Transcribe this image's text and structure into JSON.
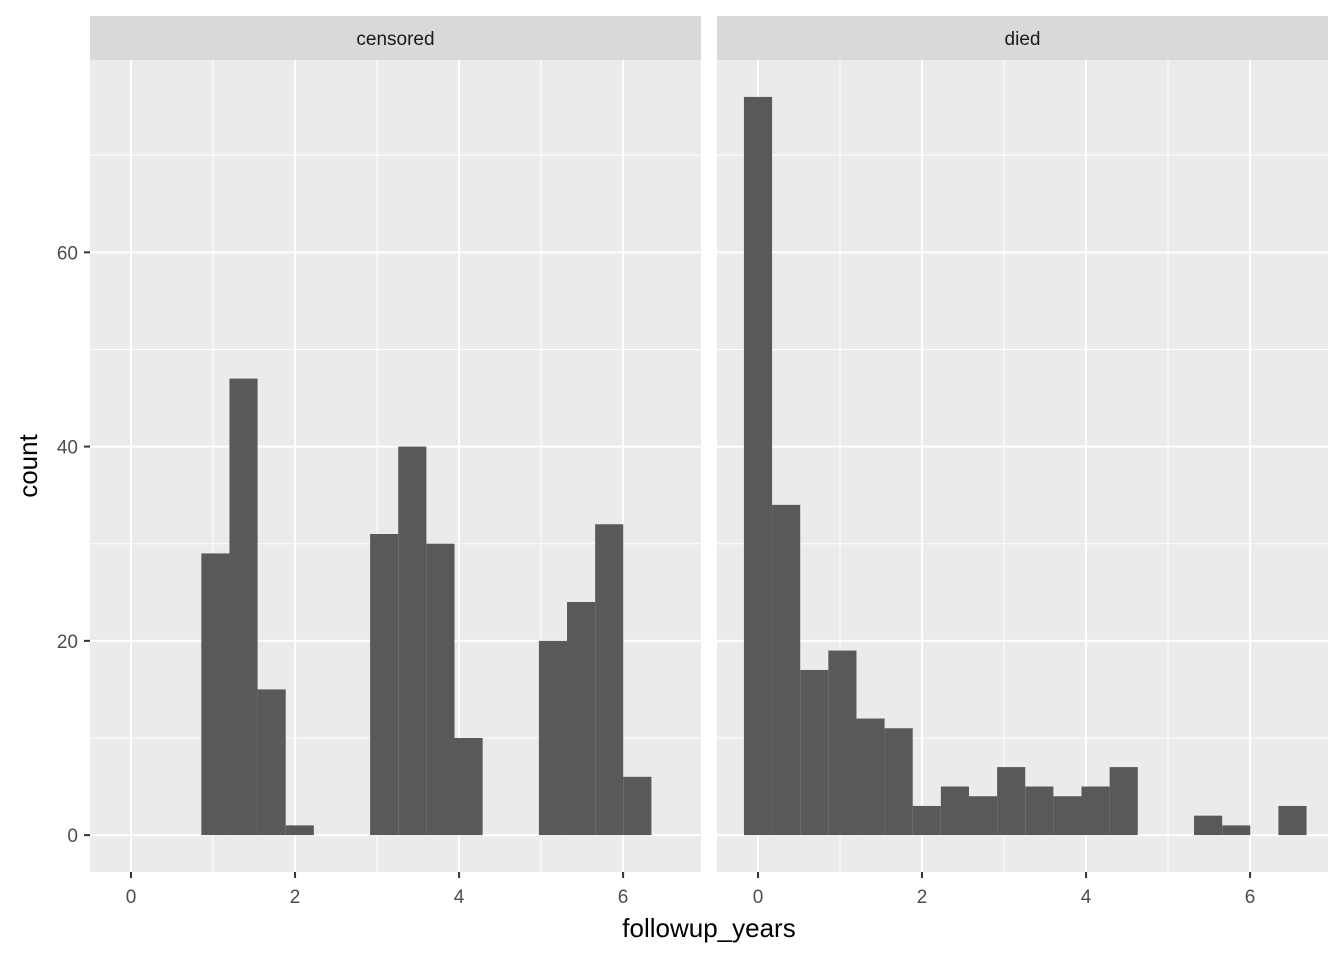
{
  "chart_data": {
    "type": "bar",
    "subtype": "faceted histogram",
    "xlabel": "followup_years",
    "ylabel": "count",
    "xlim": [
      -0.5,
      6.95
    ],
    "ylim": [
      -3.8,
      79.8
    ],
    "x_ticks": [
      0,
      2,
      4,
      6
    ],
    "x_tick_labels": [
      "0",
      "2",
      "4",
      "6"
    ],
    "y_ticks": [
      0,
      20,
      40,
      60
    ],
    "y_tick_labels": [
      "0",
      "20",
      "40",
      "60"
    ],
    "grid": true,
    "bin_width": 0.343,
    "bar_color": "#595959",
    "panel_background": "#EBEBEB",
    "strip_background": "#D9D9D9",
    "facets": [
      {
        "label": "censored",
        "bin_centers": [
          1.029,
          1.372,
          1.715,
          2.058,
          3.087,
          3.43,
          3.773,
          4.116,
          5.145,
          5.488,
          5.831,
          6.174
        ],
        "counts": [
          29,
          47,
          15,
          1,
          31,
          40,
          30,
          10,
          20,
          24,
          32,
          6
        ]
      },
      {
        "label": "died",
        "bin_centers": [
          0.0,
          0.343,
          0.686,
          1.029,
          1.372,
          1.715,
          2.058,
          2.401,
          2.744,
          3.087,
          3.43,
          3.773,
          4.116,
          4.459,
          5.488,
          5.831,
          6.517
        ],
        "counts": [
          76,
          34,
          17,
          19,
          12,
          11,
          3,
          5,
          4,
          7,
          5,
          4,
          5,
          7,
          2,
          1,
          3
        ]
      }
    ]
  }
}
